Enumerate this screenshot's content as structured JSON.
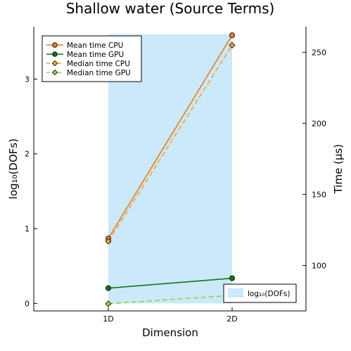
{
  "chart_data": {
    "type": "line",
    "title": "Shallow water (Source Terms)",
    "xlabel": "Dimension",
    "ylabel_left": "log₁₀(DOFs)",
    "ylabel_right": "Time (µs)",
    "categories": [
      "1D",
      "2D"
    ],
    "left_axis": {
      "ticks": [
        0,
        1,
        2,
        3
      ],
      "ylim": [
        -0.1,
        3.7
      ]
    },
    "right_axis": {
      "ticks": [
        100,
        150,
        200,
        250
      ],
      "ylim": [
        68,
        268
      ]
    },
    "bar_series": {
      "name": "log₁₀(DOFs)",
      "axis": "left",
      "values": [
        3.6,
        3.6
      ],
      "color": "#cce8fb"
    },
    "series": [
      {
        "name": "Mean time CPU",
        "axis": "right",
        "values": [
          119,
          262
        ],
        "color": "#e87c1e",
        "marker": "circle",
        "dash": "solid"
      },
      {
        "name": "Mean time GPU",
        "axis": "right",
        "values": [
          84,
          91
        ],
        "color": "#0a7a16",
        "marker": "circle",
        "dash": "solid"
      },
      {
        "name": "Median time CPU",
        "axis": "right",
        "values": [
          117,
          255
        ],
        "color": "#f2a32a",
        "marker": "diamond",
        "dash": "dashed"
      },
      {
        "name": "Median time GPU",
        "axis": "right",
        "values": [
          73,
          79
        ],
        "color": "#8fd23b",
        "marker": "diamond",
        "dash": "dashed"
      }
    ],
    "legend_lines_position": "top-left",
    "legend_bar_position": "bottom-right",
    "grid": false
  }
}
